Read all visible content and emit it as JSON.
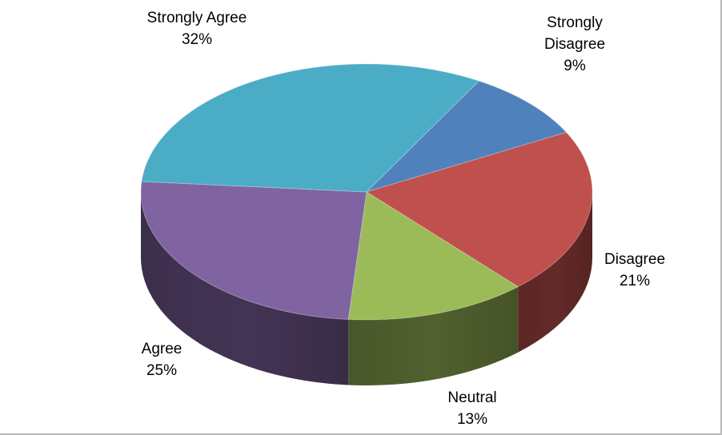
{
  "chart_data": {
    "type": "pie",
    "style": "3d",
    "title": "",
    "slices": [
      {
        "category": "Strongly Disagree",
        "label_lines": [
          "Strongly",
          "Disagree"
        ],
        "percent_label": "9%",
        "value": 9,
        "color": "#4F81BD"
      },
      {
        "category": "Disagree",
        "label_lines": [
          "Disagree"
        ],
        "percent_label": "21%",
        "value": 21,
        "color": "#C0504D"
      },
      {
        "category": "Neutral",
        "label_lines": [
          "Neutral"
        ],
        "percent_label": "13%",
        "value": 13,
        "color": "#9BBB59"
      },
      {
        "category": "Agree",
        "label_lines": [
          "Agree"
        ],
        "percent_label": "25%",
        "value": 25,
        "color": "#8064A2"
      },
      {
        "category": "Strongly Agree",
        "label_lines": [
          "Strongly Agree"
        ],
        "percent_label": "32%",
        "value": 32,
        "color": "#4BACC6"
      }
    ],
    "legend": "none",
    "data_labels": "outside"
  }
}
